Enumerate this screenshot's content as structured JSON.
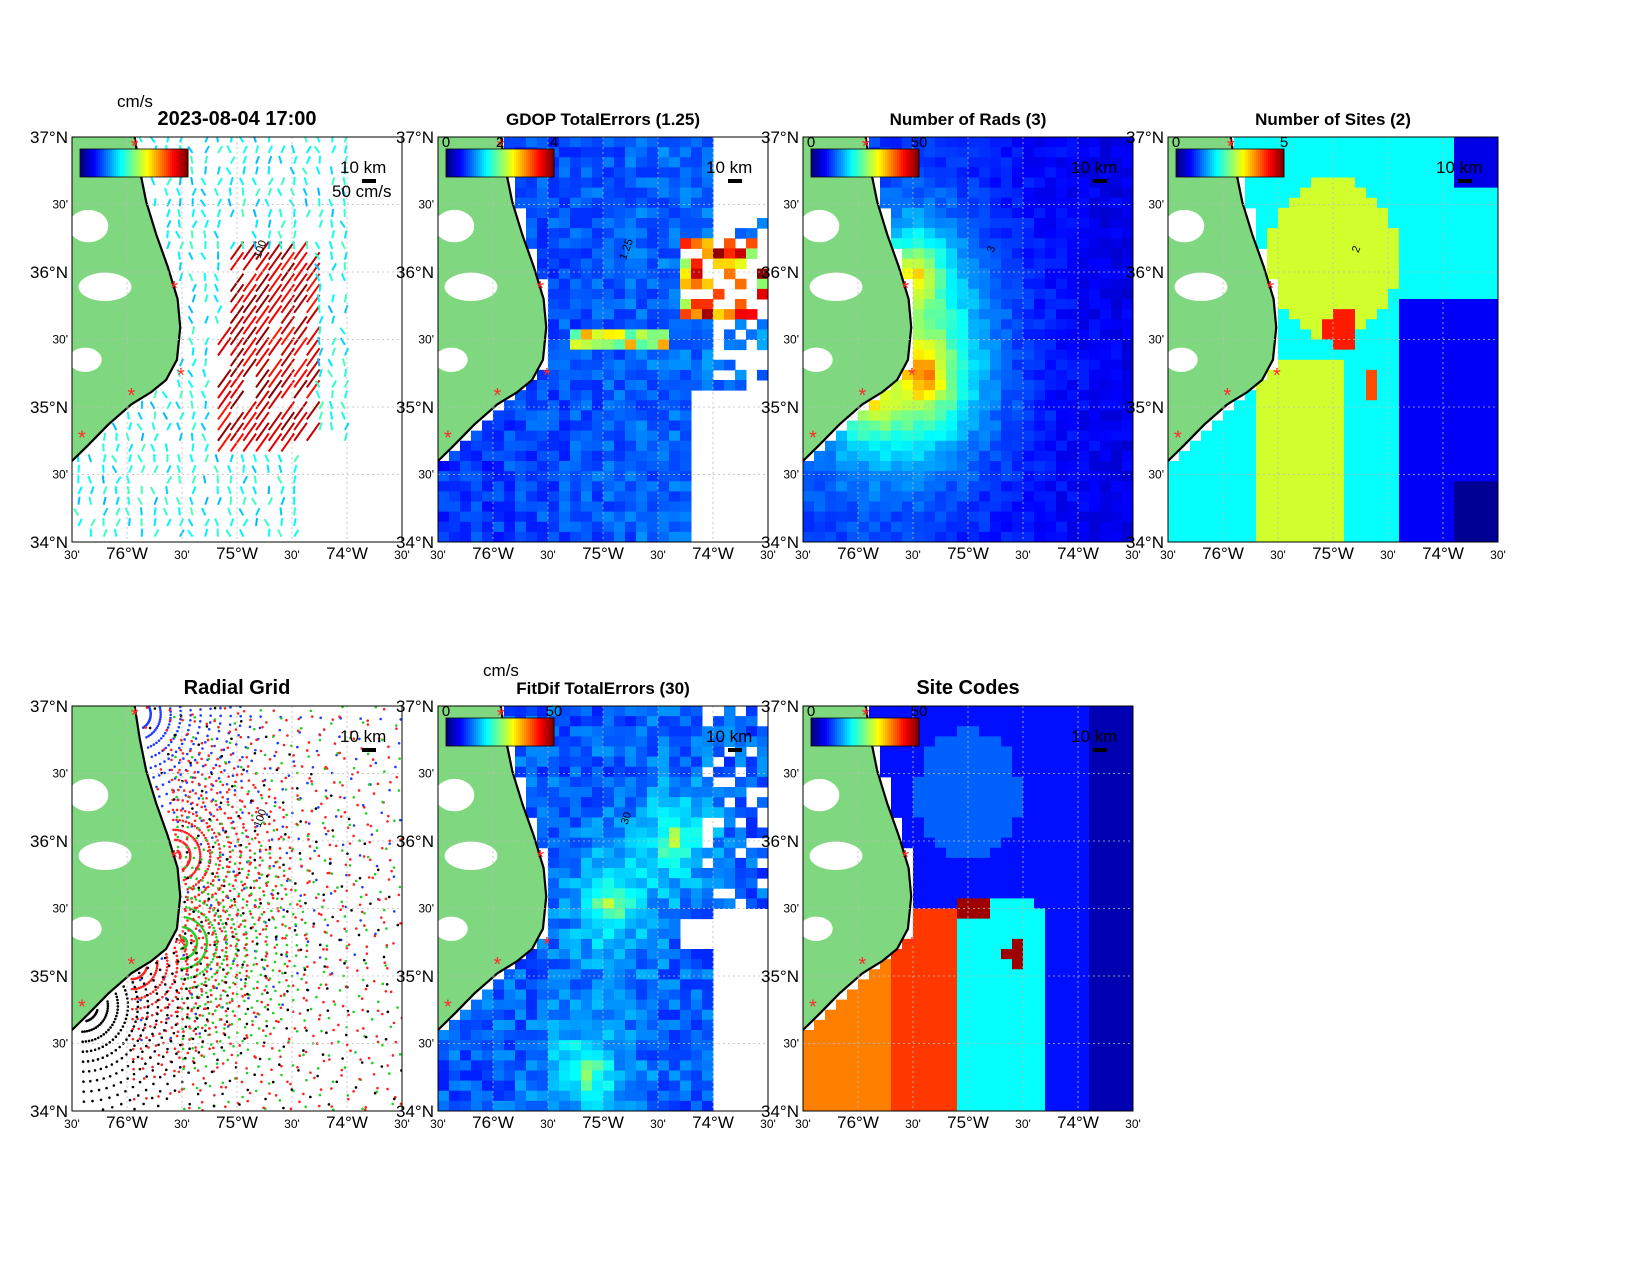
{
  "figure": {
    "lat_ticks": [
      "37°N",
      "30'",
      "36°N",
      "30'",
      "35°N",
      "30'",
      "34°N"
    ],
    "lon_ticks": [
      "30'",
      "76°W",
      "30'",
      "75°W",
      "30'",
      "74°W",
      "30'"
    ],
    "scale_label": "10 km",
    "colors": {
      "land": "#7fd87f",
      "ocean_bg": "#ffffff",
      "site_marker": "#ff2a2a",
      "contour": "#000000",
      "grid": "#bcbcbc"
    },
    "colormap": "jet"
  },
  "panels": [
    {
      "id": "total-vectors",
      "title": "2023-08-04 17:00",
      "colorbar_unit": "cm/s",
      "colorbar_ticks": [],
      "vector_label": "50 cm/s",
      "contour_label": "100",
      "scale_label": "10 km",
      "type": "vector-field"
    },
    {
      "id": "gdop-total-errors",
      "title": "GDOP TotalErrors (1.25)",
      "colorbar_unit": "",
      "colorbar_ticks": [
        "0",
        "2",
        "4"
      ],
      "contour_label": "1.25",
      "scale_label": "10 km",
      "type": "heatmap"
    },
    {
      "id": "number-of-rads",
      "title": "Number of Rads (3)",
      "colorbar_unit": "",
      "colorbar_ticks": [
        "0",
        "50"
      ],
      "contour_label": "3",
      "scale_label": "10 km",
      "type": "heatmap"
    },
    {
      "id": "number-of-sites",
      "title": "Number of Sites (2)",
      "colorbar_unit": "",
      "colorbar_ticks": [
        "0",
        "5"
      ],
      "contour_label": "2",
      "scale_label": "10 km",
      "type": "heatmap"
    },
    {
      "id": "radial-grid",
      "title": "Radial Grid",
      "colorbar_unit": "",
      "colorbar_ticks": [],
      "contour_label": "100",
      "scale_label": "10 km",
      "type": "radial-grid"
    },
    {
      "id": "fitdif-total-errors",
      "title": "FitDif TotalErrors (30)",
      "colorbar_unit": "cm/s",
      "colorbar_ticks": [
        "0",
        "50"
      ],
      "contour_label": "30",
      "scale_label": "10 km",
      "type": "heatmap"
    },
    {
      "id": "site-codes",
      "title": "Site Codes",
      "colorbar_unit": "",
      "colorbar_ticks": [
        "0",
        "50"
      ],
      "contour_label": "",
      "scale_label": "10 km",
      "type": "categorical"
    }
  ]
}
